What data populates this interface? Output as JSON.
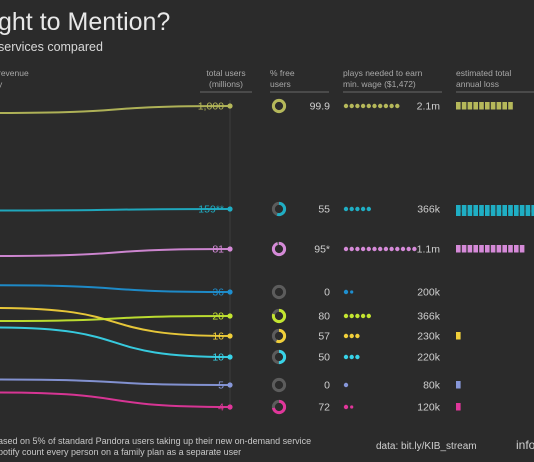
{
  "header": {
    "title": "ght to Mention?",
    "subtitle": "services compared"
  },
  "columns": {
    "left_line1": "revenue",
    "left_line2": "y",
    "users_line1": "total users",
    "users_line2": "(millions)",
    "free_line1": "% free",
    "free_line2": "users",
    "plays_line1": "plays needed to earn",
    "plays_line2": "min. wage ($1,472)",
    "loss_line1": "estimated total",
    "loss_line2": "annual loss"
  },
  "footer": {
    "note1": "ased on 5% of standard Pandora users taking up their new on-demand service",
    "note2": "potify count every person on a family plan as a separate user",
    "source": "data: bit.ly/KIB_stream",
    "brand": "info"
  },
  "chart_data": {
    "type": "table",
    "rows": [
      {
        "users": "1,000",
        "free_pct": "99.9",
        "plays": "2.1m",
        "plays_dots": 10,
        "loss_blocks": 10,
        "color": "#b5b85a",
        "left_level": 0.96
      },
      {
        "users": "159**",
        "free_pct": "55",
        "plays": "366k",
        "plays_dots": 5,
        "loss_blocks": 16,
        "color": "#1faec4",
        "left_level": 0.66
      },
      {
        "users": "81",
        "free_pct": "95*",
        "plays": "1.1m",
        "plays_dots": 13,
        "loss_blocks": 12,
        "color": "#d58ad8",
        "left_level": 0.52
      },
      {
        "users": "36",
        "free_pct": "0",
        "plays": "200k",
        "plays_dots": 2,
        "loss_blocks": 0,
        "color": "#1e8fd0",
        "left_level": 0.43
      },
      {
        "users": "20",
        "free_pct": "80",
        "plays": "366k",
        "plays_dots": 5,
        "loss_blocks": 0,
        "color": "#c3e530",
        "left_level": 0.32
      },
      {
        "users": "16",
        "free_pct": "57",
        "plays": "230k",
        "plays_dots": 3,
        "loss_blocks": 1,
        "color": "#f0cf3a",
        "left_level": 0.36
      },
      {
        "users": "10",
        "free_pct": "50",
        "plays": "220k",
        "plays_dots": 3,
        "loss_blocks": 0,
        "color": "#38d3e8",
        "left_level": 0.3
      },
      {
        "users": "5",
        "free_pct": "0",
        "plays": "80k",
        "plays_dots": 1,
        "loss_blocks": 1,
        "color": "#8797d9",
        "left_level": 0.14
      },
      {
        "users": "4",
        "free_pct": "72",
        "plays": "120k",
        "plays_dots": 2,
        "loss_blocks": 1,
        "color": "#e0369a",
        "left_level": 0.1
      }
    ]
  }
}
